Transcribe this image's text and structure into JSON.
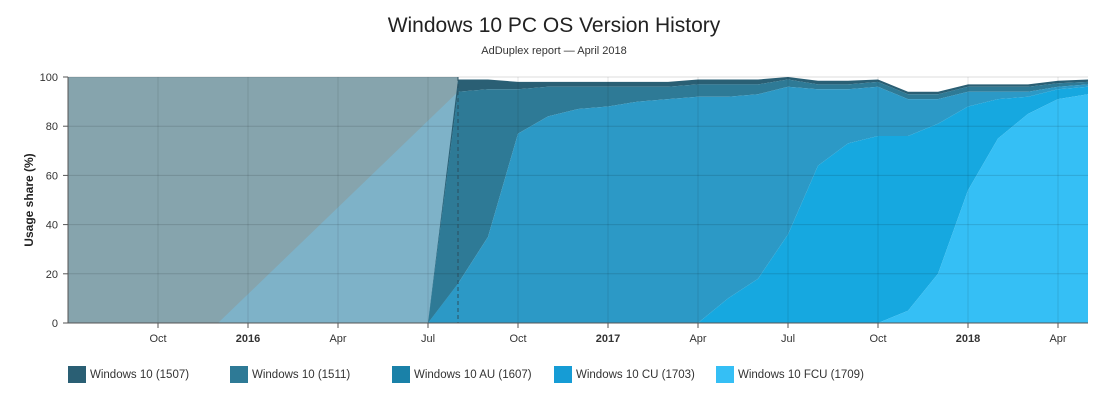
{
  "chart_data": {
    "type": "area",
    "stacked": true,
    "title": "Windows 10 PC OS Version History",
    "subtitle": "AdDuplex report — April 2018",
    "ylabel": "Usage share (%)",
    "xlabel": "",
    "ylim": [
      0,
      100
    ],
    "yticks": [
      0,
      20,
      40,
      60,
      80,
      100
    ],
    "grid": true,
    "legend_position": "bottom-left",
    "x_range": [
      "2015-07",
      "2018-05"
    ],
    "x_ticks": [
      {
        "label": "Oct",
        "date": "2015-10",
        "bold": false
      },
      {
        "label": "2016",
        "date": "2016-01",
        "bold": true
      },
      {
        "label": "Apr",
        "date": "2016-04",
        "bold": false
      },
      {
        "label": "Jul",
        "date": "2016-07",
        "bold": false
      },
      {
        "label": "Oct",
        "date": "2016-10",
        "bold": false
      },
      {
        "label": "2017",
        "date": "2017-01",
        "bold": true
      },
      {
        "label": "Apr",
        "date": "2017-04",
        "bold": false
      },
      {
        "label": "Jul",
        "date": "2017-07",
        "bold": false
      },
      {
        "label": "Oct",
        "date": "2017-10",
        "bold": false
      },
      {
        "label": "2018",
        "date": "2018-01",
        "bold": true
      },
      {
        "label": "Apr",
        "date": "2018-04",
        "bold": false
      }
    ],
    "background_regions": [
      {
        "name": "",
        "from": "2015-07",
        "to": "2016-08",
        "color": "#86a4ad",
        "points": [
          {
            "x": "2015-07",
            "y": 100
          },
          {
            "x": "2016-08",
            "y": 100
          }
        ]
      },
      {
        "name": "",
        "from": "2015-07",
        "to": "2016-08",
        "color": "#7eb2c8",
        "points": [
          {
            "x": "2015-07",
            "y": 0
          },
          {
            "x": "2015-12",
            "y": 0
          },
          {
            "x": "2016-08",
            "y": 94
          }
        ]
      }
    ],
    "divider_date": "2016-08",
    "x_dates": [
      "2016-07",
      "2016-08",
      "2016-09",
      "2016-10",
      "2016-11",
      "2016-12",
      "2017-01",
      "2017-02",
      "2017-03",
      "2017-04",
      "2017-05",
      "2017-06",
      "2017-07",
      "2017-08",
      "2017-09",
      "2017-10",
      "2017-11",
      "2017-12",
      "2018-01",
      "2018-02",
      "2018-03",
      "2018-04",
      "2018-05"
    ],
    "series": [
      {
        "name": "Windows 10 FCU (1709)",
        "color": "#35bff5",
        "values": [
          0,
          0,
          0,
          0,
          0,
          0,
          0,
          0,
          0,
          0,
          0,
          0,
          0,
          0,
          0,
          0,
          5,
          20,
          54,
          75,
          85,
          91,
          93
        ]
      },
      {
        "name": "Windows 10 CU (1703)",
        "color": "#16a8e0",
        "values": [
          0,
          0,
          0,
          0,
          0,
          0,
          0,
          0,
          0,
          0,
          10,
          18,
          36,
          64,
          73,
          76,
          71,
          61,
          34,
          16,
          7,
          4,
          3
        ]
      },
      {
        "name": "Windows 10 AU (1607)",
        "color": "#2c99c6",
        "values": [
          0,
          16,
          35,
          77,
          84,
          87,
          88,
          90,
          91,
          92,
          82,
          75,
          60,
          31,
          22,
          20,
          15,
          10,
          6,
          3,
          2,
          1,
          1
        ]
      },
      {
        "name": "Windows 10 (1511)",
        "color": "#2e7a96",
        "values": [
          0,
          78,
          60,
          18,
          12,
          9,
          8,
          6,
          5,
          5,
          5,
          4,
          3,
          2,
          2,
          2,
          2,
          2,
          2,
          2,
          2,
          1.5,
          1
        ]
      },
      {
        "name": "Windows 10 (1507)",
        "color": "#2a5f74",
        "values": [
          0,
          5,
          4,
          3,
          2,
          2,
          2,
          2,
          2,
          2,
          2,
          2,
          1.5,
          1.5,
          1.5,
          1,
          1,
          1,
          1,
          1,
          1,
          1,
          1
        ]
      }
    ]
  },
  "legend": {
    "items": [
      {
        "label": "Windows 10 (1507)",
        "color": "#2a5f74"
      },
      {
        "label": "Windows 10 (1511)",
        "color": "#2e7a96"
      },
      {
        "label": "Windows 10 AU (1607)",
        "color": "#1a81a8"
      },
      {
        "label": "Windows 10 CU (1703)",
        "color": "#169cd5"
      },
      {
        "label": "Windows 10 FCU (1709)",
        "color": "#35bff5"
      }
    ]
  }
}
